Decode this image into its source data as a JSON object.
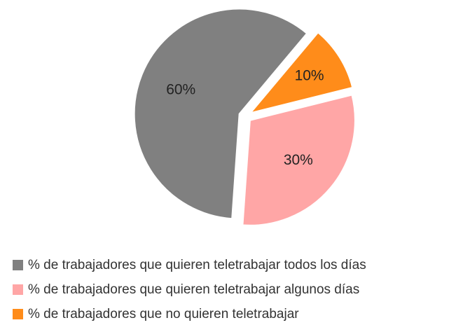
{
  "chart_data": {
    "type": "pie",
    "categories": [
      "% de trabajadores que quieren teletrabajar todos los días",
      "% de trabajadores que quieren teletrabajar algunos días",
      "% de trabajadores que no quieren teletrabajar"
    ],
    "values": [
      60,
      30,
      10
    ],
    "value_labels": [
      "60%",
      "30%",
      "10%"
    ],
    "colors": [
      "#808080",
      "#ffa6a6",
      "#ff8c1a"
    ],
    "legend": "bottom"
  }
}
